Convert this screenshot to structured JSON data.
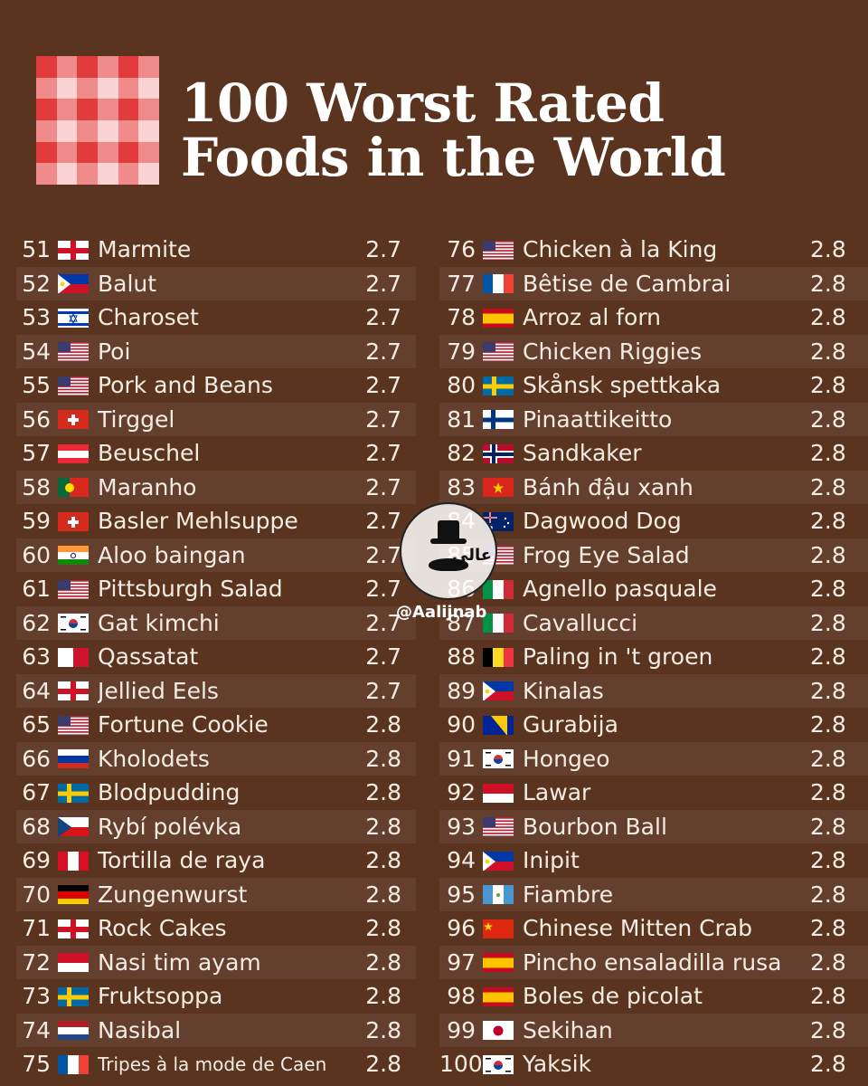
{
  "title": "100 Worst Rated Foods in the World",
  "watermark": {
    "handle": "@Aalijnab",
    "logo_text": "عالي"
  },
  "left": [
    {
      "rank": "51",
      "name": "Marmite",
      "score": "2.7",
      "flag": "england"
    },
    {
      "rank": "52",
      "name": "Balut",
      "score": "2.7",
      "flag": "philippines"
    },
    {
      "rank": "53",
      "name": "Charoset",
      "score": "2.7",
      "flag": "israel"
    },
    {
      "rank": "54",
      "name": "Poi",
      "score": "2.7",
      "flag": "usa"
    },
    {
      "rank": "55",
      "name": "Pork and Beans",
      "score": "2.7",
      "flag": "usa"
    },
    {
      "rank": "56",
      "name": "Tirggel",
      "score": "2.7",
      "flag": "switzerland"
    },
    {
      "rank": "57",
      "name": "Beuschel",
      "score": "2.7",
      "flag": "austria"
    },
    {
      "rank": "58",
      "name": "Maranho",
      "score": "2.7",
      "flag": "portugal"
    },
    {
      "rank": "59",
      "name": "Basler Mehlsuppe",
      "score": "2.7",
      "flag": "switzerland"
    },
    {
      "rank": "60",
      "name": "Aloo baingan",
      "score": "2.7",
      "flag": "india"
    },
    {
      "rank": "61",
      "name": "Pittsburgh Salad",
      "score": "2.7",
      "flag": "usa"
    },
    {
      "rank": "62",
      "name": "Gat kimchi",
      "score": "2.7",
      "flag": "korea"
    },
    {
      "rank": "63",
      "name": "Qassatat",
      "score": "2.7",
      "flag": "malta"
    },
    {
      "rank": "64",
      "name": "Jellied Eels",
      "score": "2.7",
      "flag": "england"
    },
    {
      "rank": "65",
      "name": "Fortune Cookie",
      "score": "2.8",
      "flag": "usa"
    },
    {
      "rank": "66",
      "name": "Kholodets",
      "score": "2.8",
      "flag": "russia"
    },
    {
      "rank": "67",
      "name": "Blodpudding",
      "score": "2.8",
      "flag": "sweden"
    },
    {
      "rank": "68",
      "name": "Rybí polévka",
      "score": "2.8",
      "flag": "czech"
    },
    {
      "rank": "69",
      "name": "Tortilla de raya",
      "score": "2.8",
      "flag": "peru"
    },
    {
      "rank": "70",
      "name": "Zungenwurst",
      "score": "2.8",
      "flag": "germany"
    },
    {
      "rank": "71",
      "name": "Rock Cakes",
      "score": "2.8",
      "flag": "england"
    },
    {
      "rank": "72",
      "name": "Nasi tim ayam",
      "score": "2.8",
      "flag": "indonesia"
    },
    {
      "rank": "73",
      "name": "Fruktsoppa",
      "score": "2.8",
      "flag": "sweden"
    },
    {
      "rank": "74",
      "name": "Nasibal",
      "score": "2.8",
      "flag": "netherlands"
    },
    {
      "rank": "75",
      "name": "Tripes à la mode de Caen",
      "score": "2.8",
      "flag": "france",
      "small": true
    }
  ],
  "right": [
    {
      "rank": "76",
      "name": "Chicken à la King",
      "score": "2.8",
      "flag": "usa"
    },
    {
      "rank": "77",
      "name": "Bêtise de Cambrai",
      "score": "2.8",
      "flag": "france"
    },
    {
      "rank": "78",
      "name": "Arroz al forn",
      "score": "2.8",
      "flag": "spain"
    },
    {
      "rank": "79",
      "name": "Chicken Riggies",
      "score": "2.8",
      "flag": "usa"
    },
    {
      "rank": "80",
      "name": "Skånsk spettkaka",
      "score": "2.8",
      "flag": "sweden"
    },
    {
      "rank": "81",
      "name": "Pinaattikeitto",
      "score": "2.8",
      "flag": "finland"
    },
    {
      "rank": "82",
      "name": "Sandkaker",
      "score": "2.8",
      "flag": "norway"
    },
    {
      "rank": "83",
      "name": "Bánh đậu xanh",
      "score": "2.8",
      "flag": "vietnam"
    },
    {
      "rank": "84",
      "name": "Dagwood Dog",
      "score": "2.8",
      "flag": "australia"
    },
    {
      "rank": "85",
      "name": "Frog Eye Salad",
      "score": "2.8",
      "flag": "usa"
    },
    {
      "rank": "86",
      "name": "Agnello pasquale",
      "score": "2.8",
      "flag": "italy"
    },
    {
      "rank": "87",
      "name": "Cavallucci",
      "score": "2.8",
      "flag": "italy"
    },
    {
      "rank": "88",
      "name": "Paling in 't groen",
      "score": "2.8",
      "flag": "belgium"
    },
    {
      "rank": "89",
      "name": "Kinalas",
      "score": "2.8",
      "flag": "philippines"
    },
    {
      "rank": "90",
      "name": "Gurabija",
      "score": "2.8",
      "flag": "bosnia"
    },
    {
      "rank": "91",
      "name": "Hongeo",
      "score": "2.8",
      "flag": "korea"
    },
    {
      "rank": "92",
      "name": "Lawar",
      "score": "2.8",
      "flag": "indonesia"
    },
    {
      "rank": "93",
      "name": "Bourbon Ball",
      "score": "2.8",
      "flag": "usa"
    },
    {
      "rank": "94",
      "name": "Inipit",
      "score": "2.8",
      "flag": "philippines"
    },
    {
      "rank": "95",
      "name": "Fiambre",
      "score": "2.8",
      "flag": "guatemala"
    },
    {
      "rank": "96",
      "name": "Chinese Mitten Crab",
      "score": "2.8",
      "flag": "china"
    },
    {
      "rank": "97",
      "name": "Pincho ensaladilla rusa",
      "score": "2.8",
      "flag": "spain"
    },
    {
      "rank": "98",
      "name": "Boles de picolat",
      "score": "2.8",
      "flag": "spain"
    },
    {
      "rank": "99",
      "name": "Sekihan",
      "score": "2.8",
      "flag": "japan"
    },
    {
      "rank": "100",
      "name": "Yaksik",
      "score": "2.8",
      "flag": "korea"
    }
  ]
}
